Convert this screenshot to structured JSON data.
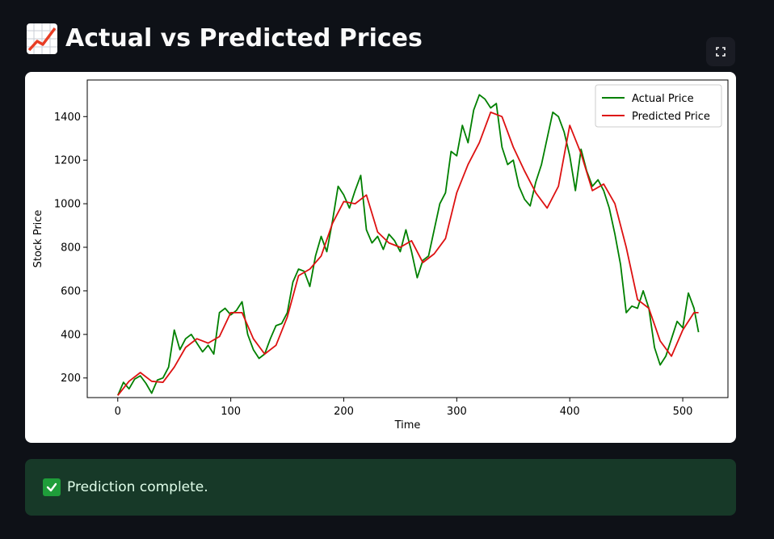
{
  "header": {
    "emoji": "chart-increasing-icon",
    "title": "Actual vs Predicted Prices"
  },
  "toolbar": {
    "fullscreen_icon": "fullscreen-icon"
  },
  "chart_data": {
    "type": "line",
    "title": "",
    "xlabel": "Time",
    "ylabel": "Stock Price",
    "xlim": [
      -27,
      540
    ],
    "ylim": [
      110,
      1568
    ],
    "xticks": [
      0,
      100,
      200,
      300,
      400,
      500
    ],
    "yticks": [
      200,
      400,
      600,
      800,
      1000,
      1200,
      1400
    ],
    "legend": "top-right",
    "grid": false,
    "series": [
      {
        "name": "Actual Price",
        "color": "#008000",
        "x": [
          0,
          5,
          10,
          15,
          20,
          25,
          30,
          35,
          40,
          45,
          50,
          55,
          60,
          65,
          70,
          75,
          80,
          85,
          90,
          95,
          100,
          105,
          110,
          115,
          120,
          125,
          130,
          135,
          140,
          145,
          150,
          155,
          160,
          165,
          170,
          175,
          180,
          185,
          190,
          195,
          200,
          205,
          210,
          215,
          220,
          225,
          230,
          235,
          240,
          245,
          250,
          255,
          260,
          265,
          270,
          275,
          280,
          285,
          290,
          295,
          300,
          305,
          310,
          315,
          320,
          325,
          330,
          335,
          340,
          345,
          350,
          355,
          360,
          365,
          370,
          375,
          380,
          385,
          390,
          395,
          400,
          405,
          410,
          415,
          420,
          425,
          430,
          435,
          440,
          445,
          450,
          455,
          460,
          465,
          470,
          475,
          480,
          485,
          490,
          495,
          500,
          505,
          510,
          514
        ],
        "values": [
          120,
          180,
          150,
          195,
          210,
          175,
          130,
          190,
          200,
          250,
          420,
          330,
          380,
          400,
          360,
          320,
          350,
          310,
          500,
          520,
          490,
          510,
          550,
          400,
          330,
          290,
          310,
          380,
          440,
          450,
          500,
          640,
          700,
          690,
          620,
          760,
          850,
          780,
          920,
          1080,
          1040,
          980,
          1060,
          1130,
          880,
          820,
          850,
          790,
          860,
          830,
          780,
          880,
          780,
          660,
          740,
          760,
          880,
          1000,
          1050,
          1240,
          1220,
          1360,
          1280,
          1430,
          1500,
          1480,
          1440,
          1460,
          1260,
          1180,
          1200,
          1080,
          1020,
          990,
          1100,
          1180,
          1300,
          1420,
          1400,
          1330,
          1220,
          1060,
          1250,
          1150,
          1080,
          1110,
          1060,
          980,
          860,
          720,
          500,
          530,
          520,
          600,
          520,
          340,
          260,
          300,
          380,
          460,
          430,
          590,
          520,
          410
        ]
      },
      {
        "name": "Predicted Price",
        "color": "#dd1111",
        "x": [
          0,
          10,
          20,
          30,
          40,
          50,
          60,
          70,
          80,
          90,
          100,
          110,
          120,
          130,
          140,
          150,
          160,
          170,
          180,
          190,
          200,
          210,
          220,
          230,
          240,
          250,
          260,
          270,
          280,
          290,
          300,
          310,
          320,
          330,
          340,
          350,
          360,
          370,
          380,
          390,
          400,
          410,
          420,
          430,
          440,
          450,
          460,
          470,
          480,
          490,
          500,
          510,
          514
        ],
        "values": [
          120,
          185,
          225,
          185,
          180,
          250,
          340,
          380,
          360,
          390,
          500,
          500,
          380,
          310,
          350,
          480,
          670,
          700,
          760,
          910,
          1010,
          1000,
          1040,
          870,
          820,
          800,
          830,
          730,
          770,
          840,
          1050,
          1180,
          1280,
          1420,
          1400,
          1260,
          1150,
          1050,
          980,
          1080,
          1360,
          1230,
          1060,
          1090,
          1000,
          800,
          560,
          520,
          370,
          300,
          420,
          500,
          500
        ]
      }
    ]
  },
  "status": {
    "icon": "check-mark-icon",
    "message": "Prediction complete."
  },
  "colors": {
    "page_bg": "#0e1117",
    "success_bg": "#173928",
    "success_text": "#dffde9",
    "actual_line": "#008000",
    "predicted_line": "#dd1111"
  }
}
